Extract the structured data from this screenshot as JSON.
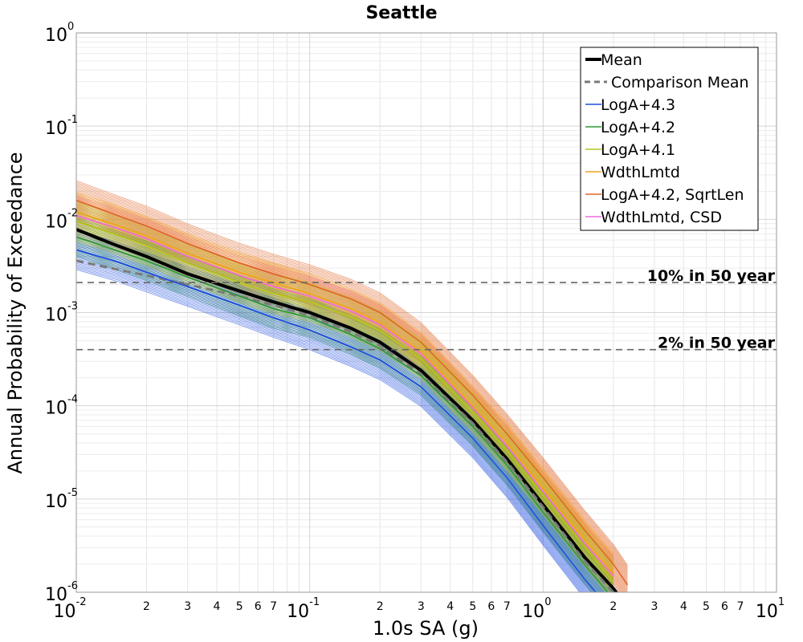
{
  "chart_data": {
    "type": "line",
    "title": "Seattle",
    "xlabel": "1.0s SA (g)",
    "ylabel": "Annual Probability of Exceedance",
    "xscale": "log",
    "yscale": "log",
    "xlim": [
      0.01,
      10
    ],
    "ylim": [
      1e-06,
      1
    ],
    "grid": true,
    "legend_position": "top-right",
    "x_major_ticks": [
      {
        "value": 0.01,
        "base": "10",
        "exp": "-2"
      },
      {
        "value": 0.1,
        "base": "10",
        "exp": "-1"
      },
      {
        "value": 1,
        "base": "10",
        "exp": "0"
      },
      {
        "value": 10,
        "base": "10",
        "exp": "1"
      }
    ],
    "x_minor_tick_labels": [
      "2",
      "3",
      "4",
      "5",
      "6",
      "7"
    ],
    "y_major_ticks": [
      {
        "value": 1,
        "base": "10",
        "exp": "0"
      },
      {
        "value": 0.1,
        "base": "10",
        "exp": "-1"
      },
      {
        "value": 0.01,
        "base": "10",
        "exp": "-2"
      },
      {
        "value": 0.001,
        "base": "10",
        "exp": "-3"
      },
      {
        "value": 0.0001,
        "base": "10",
        "exp": "-4"
      },
      {
        "value": 1e-05,
        "base": "10",
        "exp": "-5"
      },
      {
        "value": 1e-06,
        "base": "10",
        "exp": "-6"
      }
    ],
    "reference_lines": [
      {
        "label": "10% in 50 year",
        "y": 0.0021
      },
      {
        "label": "2% in 50 year",
        "y": 0.0004
      }
    ],
    "series": [
      {
        "name": "Mean",
        "color": "#000000",
        "style": "solid-thick",
        "x": [
          0.01,
          0.015,
          0.02,
          0.03,
          0.05,
          0.07,
          0.1,
          0.15,
          0.2,
          0.3,
          0.5,
          0.7,
          1.0,
          1.5,
          2.0,
          2.4
        ],
        "y": [
          0.0078,
          0.0052,
          0.004,
          0.0026,
          0.0017,
          0.0013,
          0.001,
          0.00068,
          0.00048,
          0.00024,
          7e-05,
          2.7e-05,
          8.7e-06,
          2.4e-06,
          1.1e-06,
          6e-07
        ]
      },
      {
        "name": "Comparison Mean",
        "color": "#7a7a7a",
        "style": "dashed",
        "x": [
          0.01,
          0.015,
          0.02,
          0.03,
          0.05,
          0.07,
          0.1,
          0.15,
          0.2,
          0.3,
          0.5,
          0.7,
          1.0,
          1.5,
          2.0
        ],
        "y": [
          0.0036,
          0.0029,
          0.0025,
          0.002,
          0.0015,
          0.0012,
          0.00093,
          0.00062,
          0.00044,
          0.00022,
          6.5e-05,
          2.5e-05,
          8.2e-06,
          2.2e-06,
          1e-06
        ]
      },
      {
        "name": "LogA+4.3",
        "color": "#1f4fe0",
        "style": "solid-thin",
        "x": [
          0.01,
          0.015,
          0.02,
          0.03,
          0.05,
          0.07,
          0.1,
          0.15,
          0.2,
          0.3,
          0.5,
          0.7,
          1.0,
          1.5,
          2.0
        ],
        "y": [
          0.0047,
          0.0035,
          0.0027,
          0.0019,
          0.0012,
          0.00088,
          0.00065,
          0.00043,
          0.00031,
          0.00016,
          4.5e-05,
          1.7e-05,
          5.2e-06,
          1.4e-06,
          6e-07
        ]
      },
      {
        "name": "LogA+4.2",
        "color": "#2e9a3a",
        "style": "solid-thin",
        "x": [
          0.01,
          0.015,
          0.02,
          0.03,
          0.05,
          0.07,
          0.1,
          0.15,
          0.2,
          0.3,
          0.5,
          0.7,
          1.0,
          1.5,
          2.0
        ],
        "y": [
          0.0065,
          0.0046,
          0.0036,
          0.0024,
          0.0015,
          0.0011,
          0.00088,
          0.00058,
          0.00041,
          0.00021,
          6e-05,
          2.3e-05,
          7.2e-06,
          2e-06,
          8.5e-07
        ]
      },
      {
        "name": "LogA+4.1",
        "color": "#b7c61f",
        "style": "solid-thin",
        "x": [
          0.01,
          0.015,
          0.02,
          0.03,
          0.05,
          0.07,
          0.1,
          0.15,
          0.2,
          0.3,
          0.5,
          0.7,
          1.0,
          1.5,
          2.0
        ],
        "y": [
          0.0095,
          0.0068,
          0.0052,
          0.0034,
          0.0021,
          0.0016,
          0.0013,
          0.0009,
          0.00064,
          0.00032,
          8.5e-05,
          3.3e-05,
          1.1e-05,
          3.1e-06,
          1.3e-06
        ]
      },
      {
        "name": "WdthLmtd",
        "color": "#f2a41c",
        "style": "solid-thin",
        "x": [
          0.01,
          0.015,
          0.02,
          0.03,
          0.05,
          0.07,
          0.1,
          0.15,
          0.2,
          0.3,
          0.5,
          0.7,
          1.0,
          1.5,
          2.0
        ],
        "y": [
          0.012,
          0.0086,
          0.0066,
          0.0043,
          0.0027,
          0.0021,
          0.0016,
          0.0011,
          0.00078,
          0.00038,
          0.0001,
          4e-05,
          1.3e-05,
          3.7e-06,
          1.6e-06
        ]
      },
      {
        "name": "LogA+4.2, SqrtLen",
        "color": "#e0662a",
        "style": "solid-thin",
        "x": [
          0.01,
          0.015,
          0.02,
          0.03,
          0.05,
          0.07,
          0.1,
          0.15,
          0.2,
          0.3,
          0.5,
          0.7,
          1.0,
          1.5,
          2.0,
          2.3
        ],
        "y": [
          0.016,
          0.011,
          0.0085,
          0.0055,
          0.0034,
          0.0026,
          0.002,
          0.0014,
          0.001,
          0.00048,
          0.00013,
          5e-05,
          1.7e-05,
          4.7e-06,
          2e-06,
          1.2e-06
        ]
      },
      {
        "name": "WdthLmtd, CSD",
        "color": "#f06ae0",
        "style": "solid-thin",
        "x": [
          0.01,
          0.015,
          0.02,
          0.03,
          0.05,
          0.07,
          0.1,
          0.15,
          0.2,
          0.3,
          0.5,
          0.7,
          1.0,
          1.5,
          2.0
        ],
        "y": [
          0.011,
          0.008,
          0.0062,
          0.004,
          0.0025,
          0.0019,
          0.0015,
          0.00104,
          0.00074,
          0.00036,
          9.5e-05,
          3.7e-05,
          1.2e-05,
          3.4e-06,
          1.5e-06
        ]
      }
    ]
  }
}
